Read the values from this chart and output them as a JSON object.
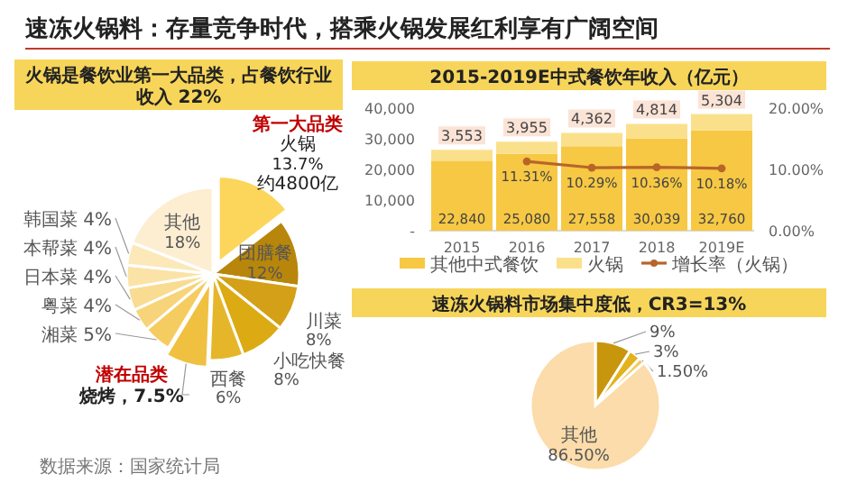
{
  "chart_data": [
    {
      "type": "pie",
      "title": "速冻火锅料：存量竞争时代，搭乘火锅发展红利享有广阔空间",
      "subtitle": "火锅是餐饮业第一大品类，占餐饮行业收入 22%",
      "categories": [
        "火锅",
        "团膳餐",
        "川菜",
        "小吃快餐",
        "西餐",
        "烧烤",
        "湘菜",
        "粤菜",
        "日本菜",
        "本帮菜",
        "韩国菜",
        "其他"
      ],
      "values": [
        13.7,
        12,
        8,
        8,
        6,
        7.5,
        5,
        4,
        4,
        4,
        4,
        18
      ],
      "value_labels": [
        "13.7%",
        "12%",
        "8%",
        "8%",
        "6%",
        "7.5%",
        "5%",
        "4%",
        "4%",
        "4%",
        "4%",
        "18%"
      ],
      "colors": [
        "#fcd65a",
        "#b8860b",
        "#d4a017",
        "#dcab14",
        "#e6b62a",
        "#f0c040",
        "#f5cc60",
        "#f7d47a",
        "#f9dc92",
        "#fbe2a6",
        "#fce8b8",
        "#fdeed2"
      ],
      "annotations": [
        "第一大品类",
        "约4800亿",
        "潜在品类",
        "数据来源：国家统计局"
      ]
    },
    {
      "type": "bar",
      "title": "2015-2019E中式餐饮年收入（亿元）",
      "categories": [
        "2015",
        "2016",
        "2017",
        "2018",
        "2019E"
      ],
      "stacked": true,
      "legend": "bottom",
      "marker": "circle",
      "ylim": [
        0,
        40000
      ],
      "yticks": [
        {
          "value": 0,
          "label": "-"
        },
        {
          "value": 10000,
          "label": "10,000"
        },
        {
          "value": 20000,
          "label": "20,000"
        },
        {
          "value": 30000,
          "label": "30,000"
        },
        {
          "value": 40000,
          "label": "40,000"
        }
      ],
      "y2lim": [
        0,
        20
      ],
      "y2ticks": [
        {
          "value": 0,
          "label": "0.00%"
        },
        {
          "value": 10,
          "label": "10.00%"
        },
        {
          "value": 20,
          "label": "20.00%"
        }
      ],
      "series": [
        {
          "name": "其他中式餐饮",
          "color": "#f7c843",
          "values": [
            22840,
            25080,
            27558,
            30039,
            32760
          ],
          "value_labels": [
            "22,840",
            "25,080",
            "27,558",
            "30,039",
            "32,760"
          ]
        },
        {
          "name": "火锅",
          "color": "#fbe08c",
          "values": [
            3553,
            3955,
            4362,
            4814,
            5304
          ],
          "value_labels": [
            "3,553",
            "3,955",
            "4,362",
            "4,814",
            "5,304"
          ]
        },
        {
          "name": "增长率（火锅）",
          "type": "line",
          "axis": "y2",
          "color": "#b8652a",
          "values": [
            null,
            11.31,
            10.29,
            10.36,
            10.18
          ],
          "value_labels": [
            null,
            "11.31%",
            "10.29%",
            "10.36%",
            "10.18%"
          ]
        }
      ]
    },
    {
      "type": "pie",
      "title": "速冻火锅料市场集中度低，CR3=13%",
      "categories": [
        null,
        null,
        null,
        "其他"
      ],
      "values": [
        9,
        3,
        1.5,
        86.5
      ],
      "value_labels": [
        "9%",
        "3%",
        "1.50%",
        "86.50%"
      ],
      "colors": [
        "#c8960c",
        "#e3b21c",
        "#f0cc5a",
        "#fbdcaa"
      ]
    }
  ]
}
